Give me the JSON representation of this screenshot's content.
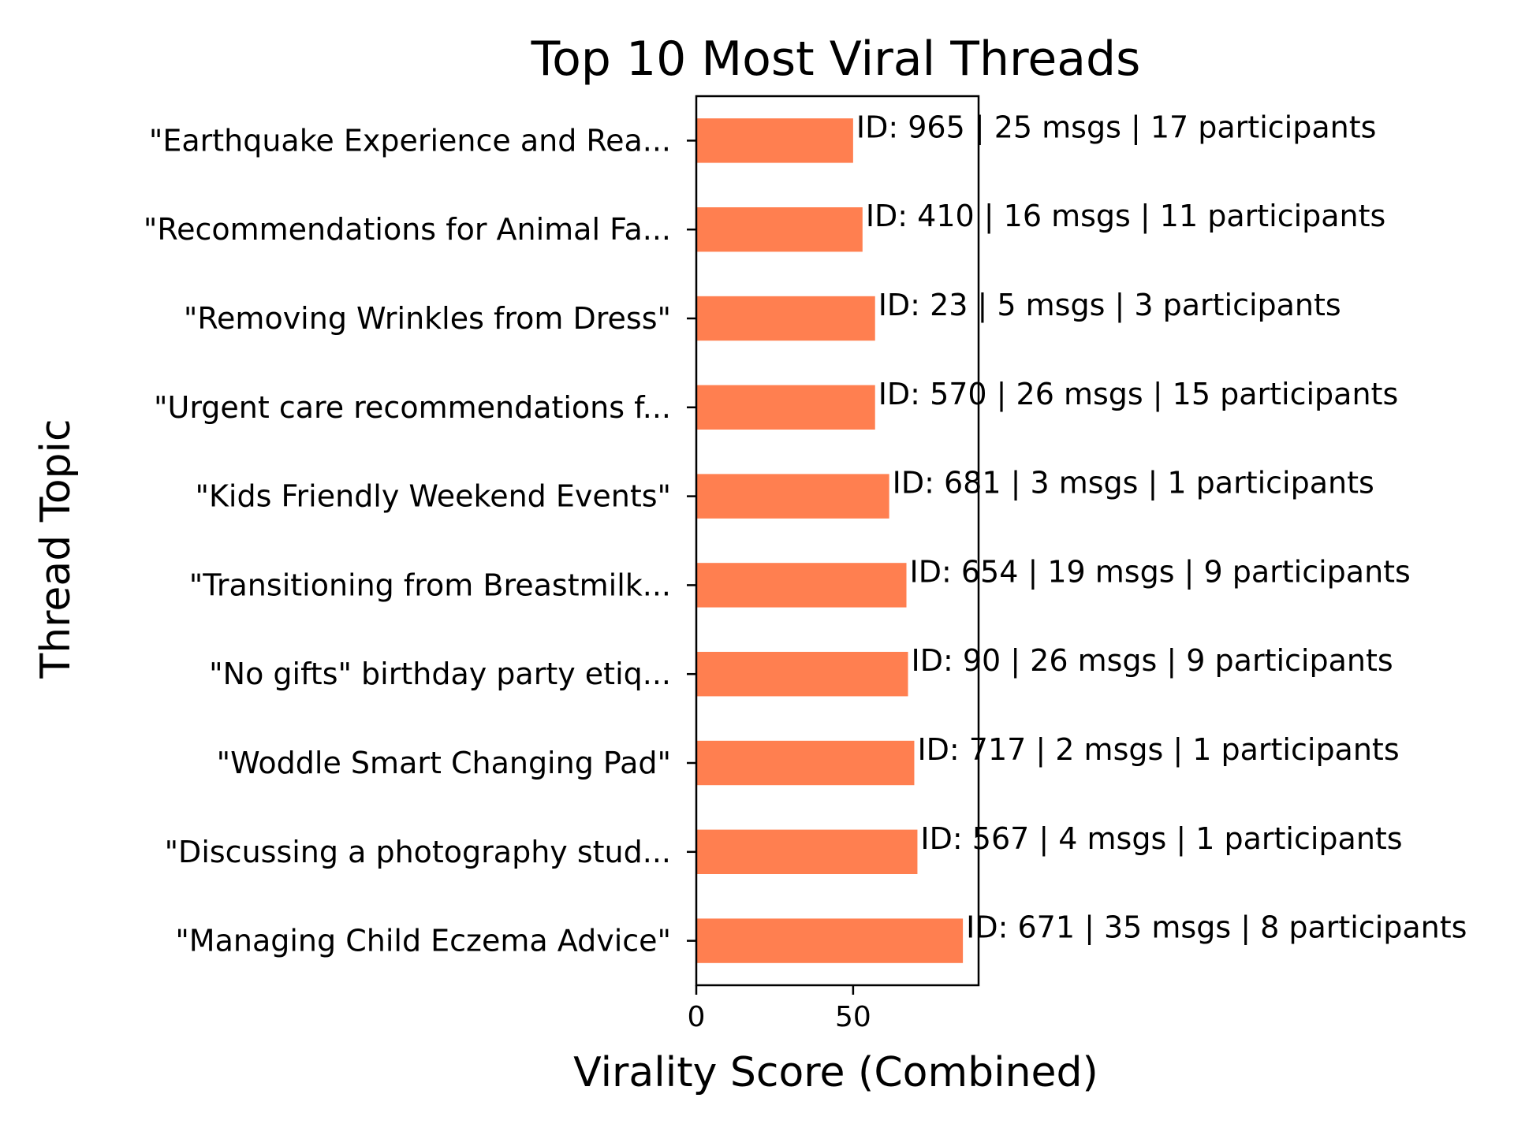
{
  "chart_data": {
    "type": "bar",
    "orientation": "horizontal",
    "title": "Top 10 Most Viral Threads",
    "xlabel": "Virality Score (Combined)",
    "ylabel": "Thread Topic",
    "xlim": [
      0,
      90
    ],
    "xticks": [
      0,
      50
    ],
    "grid": false,
    "bar_color": "#ff7f50",
    "categories": [
      "\"Earthquake Experience and Rea...",
      "\"Recommendations for Animal Fa...",
      "\"Removing Wrinkles from Dress\"",
      "\"Urgent care recommendations f...",
      "\"Kids Friendly Weekend Events\"",
      "\"Transitioning from Breastmilk...",
      "\"No gifts\" birthday party etiq...",
      "\"Woddle Smart Changing Pad\"",
      "\"Discussing a photography stud...",
      "\"Managing Child Eczema Advice\""
    ],
    "values": [
      50,
      53,
      57,
      57,
      61.5,
      67,
      67.5,
      69.5,
      70.5,
      85
    ],
    "bar_labels": [
      "ID: 965 | 25 msgs | 17 participants",
      "ID: 410 | 16 msgs | 11 participants",
      "ID: 23 | 5 msgs | 3 participants",
      "ID: 570 | 26 msgs | 15 participants",
      "ID: 681 | 3 msgs | 1 participants",
      "ID: 654 | 19 msgs | 9 participants",
      "ID: 90 | 26 msgs | 9 participants",
      "ID: 717 | 2 msgs | 1 participants",
      "ID: 567 | 4 msgs | 1 participants",
      "ID: 671 | 35 msgs | 8 participants"
    ]
  }
}
